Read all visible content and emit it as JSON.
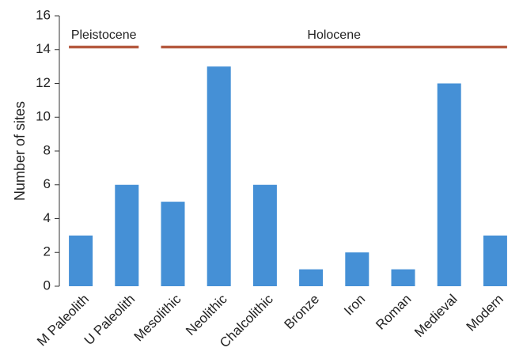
{
  "chart_data": {
    "type": "bar",
    "ylabel": "Number of sites",
    "categories": [
      "M Paleolith",
      "U Paleolith",
      "Mesolithic",
      "Neolithic",
      "Chalcolithic",
      "Bronze",
      "Iron",
      "Roman",
      "Medieval",
      "Modern"
    ],
    "values": [
      3,
      6,
      5,
      13,
      6,
      1,
      2,
      1,
      12,
      3
    ],
    "color": "#4590d6",
    "ylim": [
      0,
      16
    ],
    "yticks": [
      0,
      2,
      4,
      6,
      8,
      10,
      12,
      14,
      16
    ],
    "annotations": [
      {
        "text": "Pleistocene",
        "start": "M Paleolith",
        "end": "U Paleolith",
        "y": 14.15,
        "color": "#b55a40"
      },
      {
        "text": "Holocene",
        "start": "Mesolithic",
        "end": "Modern",
        "y": 14.15,
        "color": "#b55a40"
      }
    ]
  }
}
